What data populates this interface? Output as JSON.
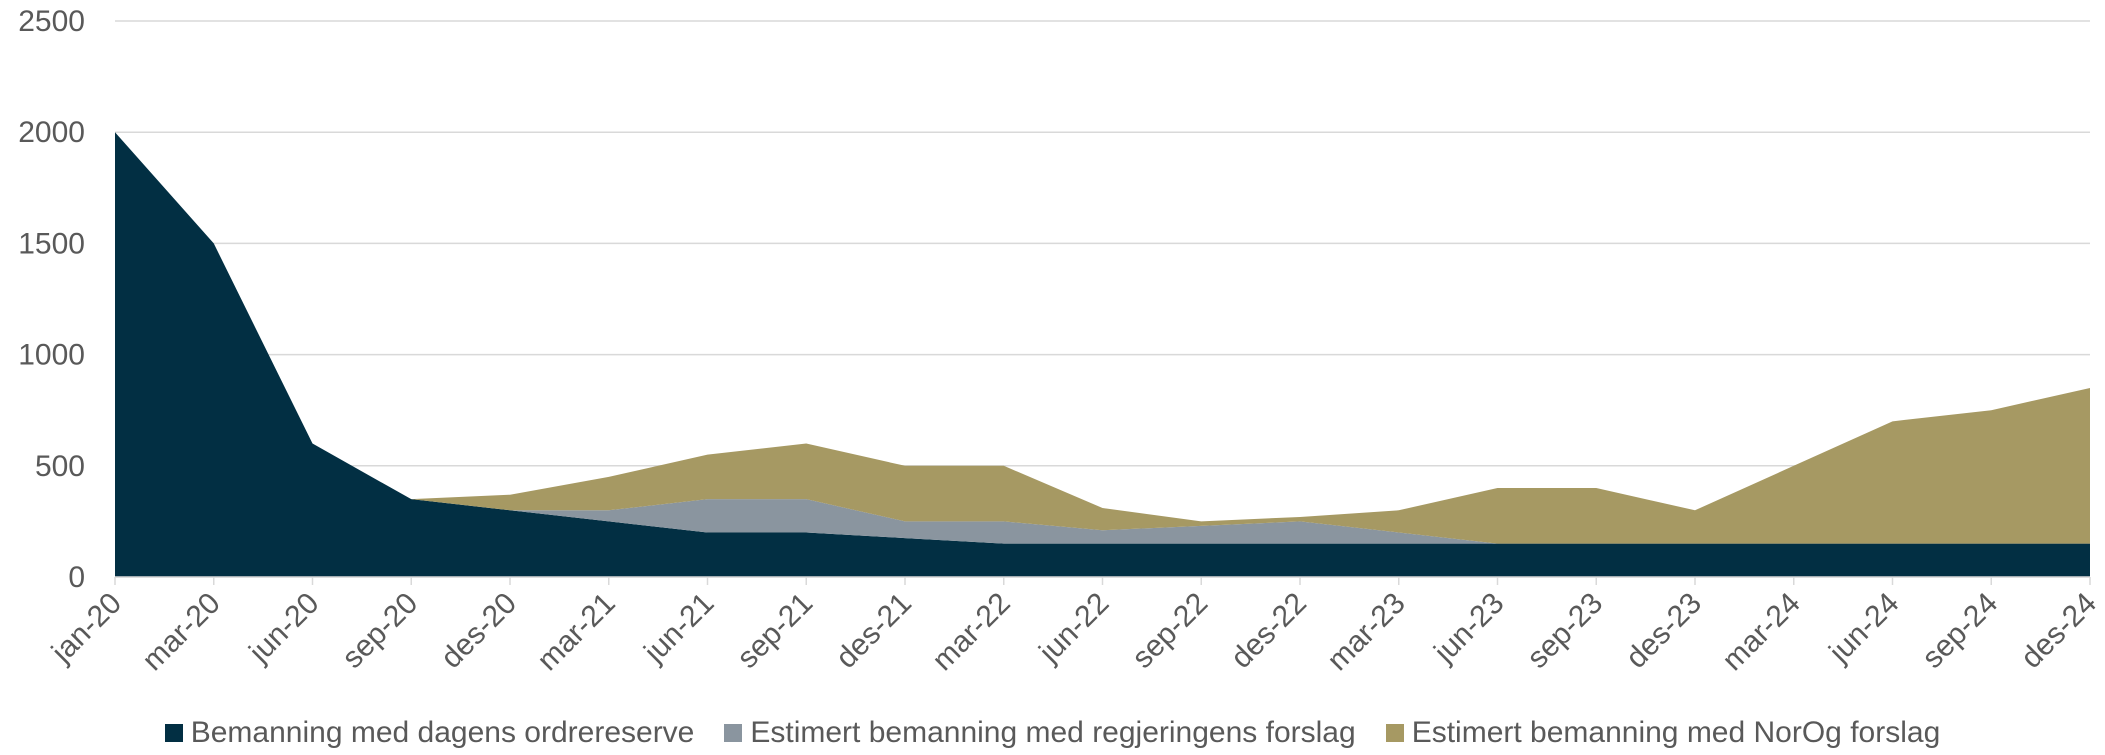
{
  "chart_data": {
    "type": "stacked_area",
    "categories": [
      "jan-20",
      "mar-20",
      "jun-20",
      "sep-20",
      "des-20",
      "mar-21",
      "jun-21",
      "sep-21",
      "des-21",
      "mar-22",
      "jun-22",
      "sep-22",
      "des-22",
      "mar-23",
      "jun-23",
      "sep-23",
      "des-23",
      "mar-24",
      "jun-24",
      "sep-24",
      "des-24"
    ],
    "series": [
      {
        "name": "Bemanning med dagens ordrereserve",
        "color": "#022f43",
        "values": [
          2000,
          1500,
          600,
          350,
          300,
          250,
          200,
          200,
          175,
          150,
          150,
          150,
          150,
          150,
          150,
          150,
          150,
          150,
          150,
          150,
          150
        ]
      },
      {
        "name": "Estimert bemanning med regjeringens forslag",
        "color": "#8a959f",
        "values": [
          0,
          0,
          0,
          0,
          0,
          50,
          150,
          150,
          75,
          100,
          60,
          80,
          100,
          50,
          0,
          0,
          0,
          0,
          0,
          0,
          0
        ]
      },
      {
        "name": "Estimert bemanning med NorOg forslag",
        "color": "#a69963",
        "values": [
          0,
          0,
          0,
          0,
          70,
          150,
          200,
          250,
          250,
          250,
          100,
          20,
          20,
          100,
          250,
          250,
          150,
          350,
          550,
          600,
          700
        ]
      }
    ],
    "ylim": [
      0,
      2500
    ],
    "yticks": [
      0,
      500,
      1000,
      1500,
      2000,
      2500
    ],
    "grid": true,
    "legend": "bottom"
  }
}
